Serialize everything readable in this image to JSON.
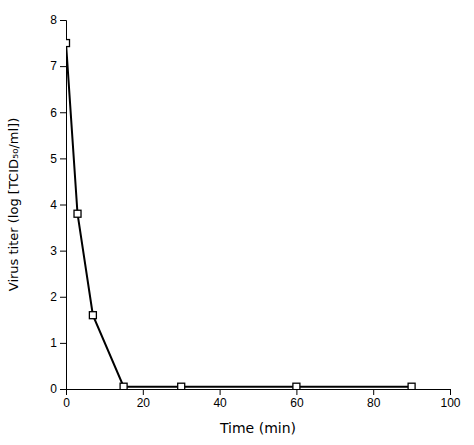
{
  "chart_data": {
    "type": "line",
    "x": [
      0,
      3,
      7,
      15,
      30,
      60,
      90
    ],
    "values": [
      7.5,
      3.8,
      1.6,
      0.05,
      0.05,
      0.05,
      0.05
    ],
    "xlabel": "Time (min)",
    "ylabel": "Virus titer (log [TCID₅₀/ml])",
    "xlim": [
      0,
      100
    ],
    "ylim": [
      0,
      8
    ],
    "xticks": [
      0,
      20,
      40,
      60,
      80,
      100
    ],
    "yticks": [
      0,
      1,
      2,
      3,
      4,
      5,
      6,
      7,
      8
    ],
    "color": "#000000",
    "marker": "square",
    "grid": false
  }
}
